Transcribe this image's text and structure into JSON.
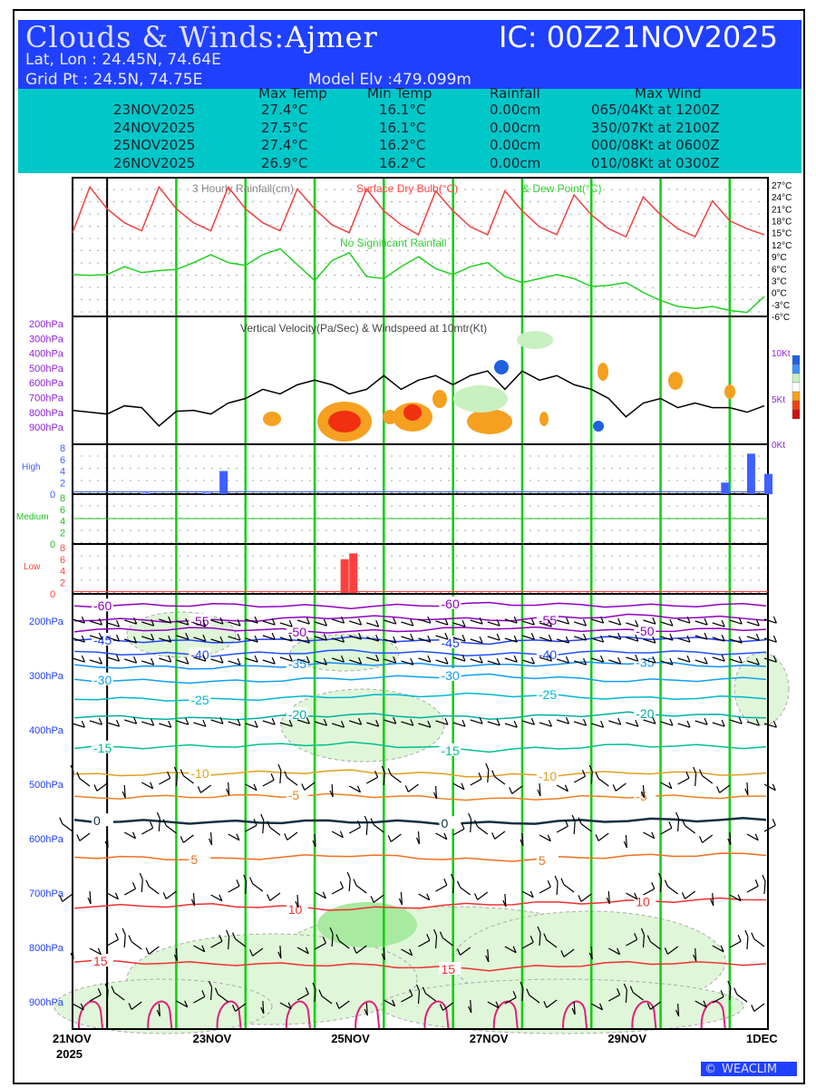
{
  "header": {
    "title_prefix": "Clouds & Winds:",
    "location": "Ajmer",
    "ic": "IC: 00Z21NOV2025",
    "latlon": "Lat, Lon : 24.45N, 74.64E",
    "gridpt": "Grid Pt  : 24.5N, 74.75E",
    "elev": "Model Elv :479.099m"
  },
  "summary": {
    "headers": [
      "Max Temp",
      "Min Temp",
      "Rainfall",
      "Max Wind"
    ],
    "rows": [
      [
        "23NOV2025",
        "27.4°C",
        "16.1°C",
        "0.00cm",
        "065/04Kt at 1200Z"
      ],
      [
        "24NOV2025",
        "27.5°C",
        "16.1°C",
        "0.00cm",
        "350/07Kt at 2100Z"
      ],
      [
        "25NOV2025",
        "27.4°C",
        "16.2°C",
        "0.00cm",
        "000/08Kt at 0600Z"
      ],
      [
        "26NOV2025",
        "26.9°C",
        "16.2°C",
        "0.00cm",
        "010/08Kt at 0300Z"
      ]
    ]
  },
  "logo": "WEACLIM",
  "chart_data": {
    "type": "line",
    "x_labels": [
      "21NOV",
      "23NOV",
      "25NOV",
      "27NOV",
      "29NOV",
      "1DEC"
    ],
    "x_year": "2025",
    "x_step_hours": 6,
    "temp_panel": {
      "title_rain": "3 Hourly Rainfall(cm)",
      "title_dry": "Surface Dry Bulb(°C)",
      "title_dew": "& Dew Point(°C)",
      "note": "No Significant Rainfall",
      "ylim": [
        -6,
        27
      ],
      "yticks": [
        "27°C",
        "24°C",
        "21°C",
        "18°C",
        "15°C",
        "12°C",
        "9°C",
        "6°C",
        "3°C",
        "0°C",
        "-3°C",
        "-6°C"
      ],
      "dry_bulb": [
        15,
        26.5,
        21,
        17.5,
        15.5,
        26.5,
        21,
        17.5,
        15.5,
        26.5,
        21,
        17.5,
        15.5,
        26,
        21,
        17,
        15,
        26,
        20.5,
        17,
        14.5,
        25.5,
        20.5,
        16.5,
        14.5,
        25.5,
        20.5,
        16.5,
        14.5,
        24.5,
        19.5,
        16,
        14,
        24,
        19.5,
        16,
        14,
        23,
        18,
        16,
        14.5
      ],
      "dew_point": [
        4.5,
        4.3,
        4.5,
        6.5,
        5,
        5.5,
        5.8,
        7.5,
        9.5,
        7.5,
        6.8,
        9.5,
        11,
        7,
        3,
        8,
        10,
        4,
        3.5,
        6.5,
        9,
        6,
        4.5,
        6.5,
        7.5,
        4,
        2.5,
        3.5,
        4.5,
        3.5,
        1.5,
        1.8,
        2.5,
        0,
        -2,
        -3.5,
        -4,
        -3.5,
        -4.5,
        -5,
        -1
      ]
    },
    "vv_panel": {
      "title": "Vertical Velocity(Pa/Sec) & Windspeed at 10mtr(Kt)",
      "yticks": [
        "200hPa",
        "300hPa",
        "400hPa",
        "500hPa",
        "600hPa",
        "700hPa",
        "800hPa",
        "900hPa"
      ],
      "right_ticks": [
        "10Kt",
        "5Kt",
        "0Kt"
      ],
      "windspeed": [
        3.7,
        3.5,
        3.3,
        4.2,
        4.0,
        2.0,
        3.6,
        3.7,
        3.3,
        4.5,
        5.0,
        6.0,
        5.5,
        6.5,
        7.0,
        6.5,
        5.5,
        6.0,
        7.5,
        6.0,
        7.0,
        7.5,
        6.5,
        7.5,
        8.0,
        6.0,
        8.0,
        7.0,
        7.5,
        6.5,
        6.0,
        5.0,
        3.0,
        4.5,
        5.0,
        4.0,
        4.5,
        4.0,
        4.0,
        3.5,
        4.2
      ]
    },
    "cloud_panels": [
      {
        "name": "High",
        "color": "#4060ff",
        "yticks": [
          "8",
          "6",
          "4",
          "2",
          "0"
        ],
        "bars": [
          {
            "t": 24,
            "v": 0.2
          },
          {
            "t": 45,
            "v": 0.2
          },
          {
            "t": 51,
            "v": 4
          },
          {
            "t": 225,
            "v": 2
          },
          {
            "t": 234,
            "v": 7
          },
          {
            "t": 240,
            "v": 3.5
          }
        ]
      },
      {
        "name": "Medium",
        "color": "#20c020",
        "yticks": [
          "8",
          "6",
          "4",
          "2",
          "0"
        ],
        "bars": []
      },
      {
        "name": "Low",
        "color": "#ff4040",
        "yticks": [
          "8",
          "6",
          "4",
          "2",
          "0"
        ],
        "bars": [
          {
            "t": 93,
            "v": 6
          },
          {
            "t": 96,
            "v": 7
          }
        ]
      }
    ],
    "wind_panel": {
      "yticks": [
        "200hPa",
        "300hPa",
        "400hPa",
        "500hPa",
        "600hPa",
        "700hPa",
        "800hPa",
        "900hPa"
      ],
      "isotherms": [
        {
          "label": "-60",
          "color": "#9000c0",
          "p": [
            172,
            170,
            174,
            168,
            172,
            170
          ]
        },
        {
          "label": "-55",
          "color": "#9000c0",
          "p": [
            197,
            200,
            192,
            198,
            190,
            196
          ]
        },
        {
          "label": "-50",
          "color": "#9000c0",
          "p": [
            217,
            214,
            220,
            212,
            218,
            214
          ]
        },
        {
          "label": "-45",
          "color": "#2040ff",
          "p": [
            235,
            238,
            232,
            240,
            230,
            236
          ]
        },
        {
          "label": "-40",
          "color": "#2050ff",
          "p": [
            258,
            262,
            255,
            262,
            256,
            260
          ]
        },
        {
          "label": "-35",
          "color": "#1090ff",
          "p": [
            283,
            286,
            278,
            282,
            276,
            285
          ]
        },
        {
          "label": "-30",
          "color": "#10a0f0",
          "p": [
            308,
            312,
            305,
            300,
            310,
            306
          ]
        },
        {
          "label": "-25",
          "color": "#00b8d0",
          "p": [
            342,
            345,
            338,
            335,
            342,
            340
          ]
        },
        {
          "label": "-20",
          "color": "#00b0a0",
          "p": [
            375,
            380,
            372,
            378,
            370,
            376
          ]
        },
        {
          "label": "-15",
          "color": "#00c090",
          "p": [
            433,
            430,
            425,
            438,
            428,
            432
          ]
        },
        {
          "label": "-10",
          "color": "#e0a020",
          "p": [
            483,
            480,
            476,
            485,
            478,
            482
          ]
        },
        {
          "label": "-5",
          "color": "#f08020",
          "p": [
            525,
            522,
            520,
            528,
            522,
            524
          ]
        },
        {
          "label": "0",
          "color": "#103040",
          "p": [
            567,
            570,
            568,
            572,
            566,
            565
          ]
        },
        {
          "label": "5",
          "color": "#f07020",
          "p": [
            633,
            638,
            630,
            640,
            632,
            628
          ]
        },
        {
          "label": "10",
          "color": "#f03030",
          "p": [
            725,
            722,
            730,
            720,
            716,
            710
          ]
        },
        {
          "label": "15",
          "color": "#f03030",
          "p": [
            825,
            830,
            832,
            840,
            828,
            830
          ]
        }
      ]
    }
  }
}
